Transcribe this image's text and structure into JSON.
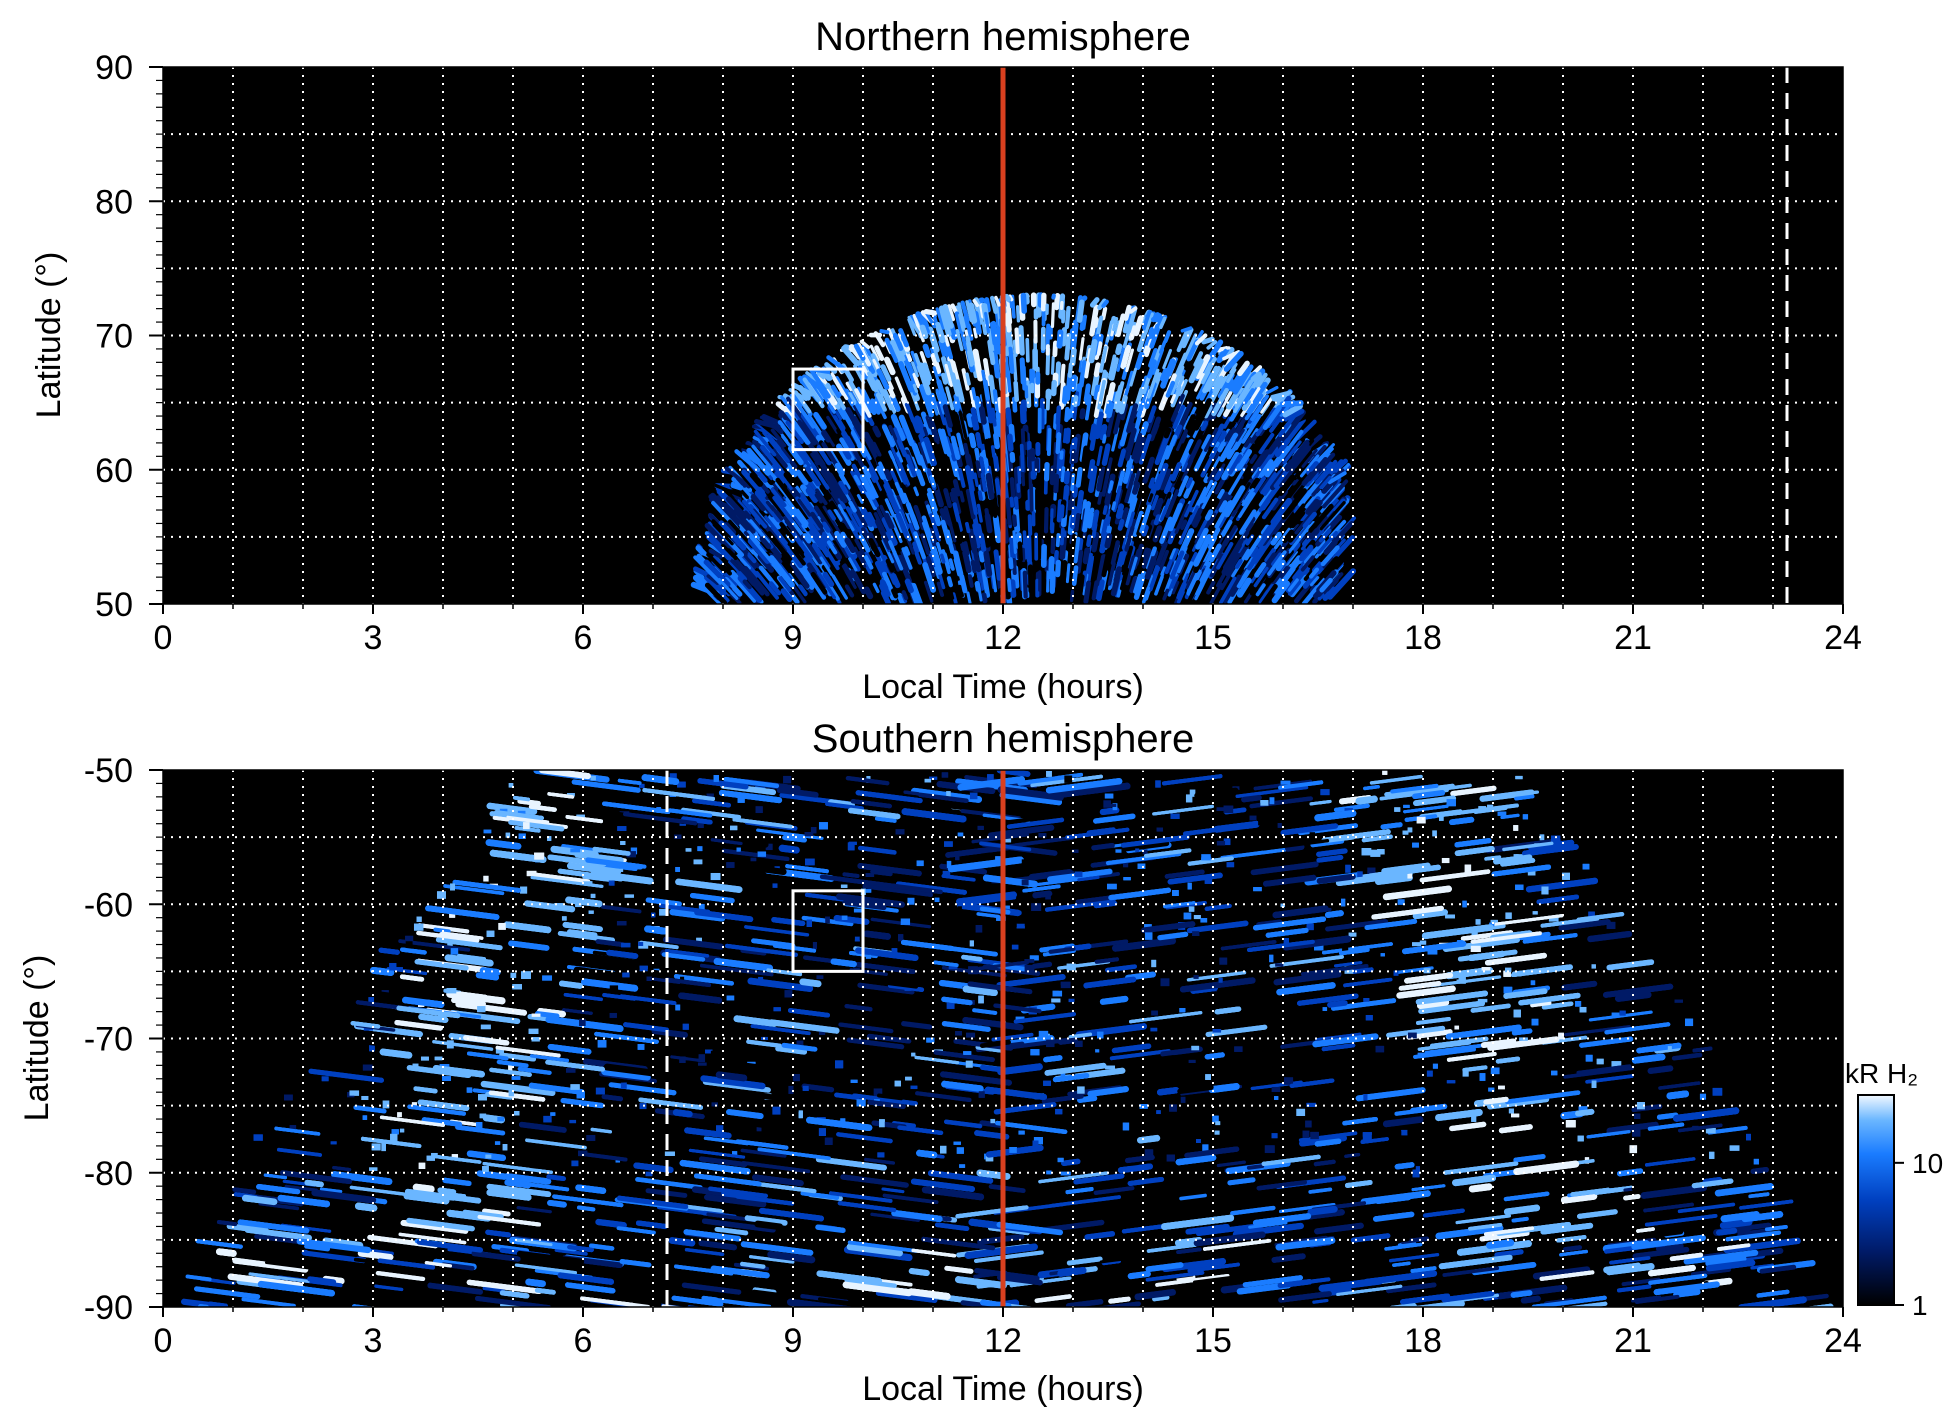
{
  "colors": {
    "background": "#000000",
    "noon_line": "#d9401f",
    "grid": "#ffffff",
    "colormap": [
      "#000000",
      "#001a66",
      "#0040c0",
      "#1a7cff",
      "#6ab6ff",
      "#e8f4ff"
    ]
  },
  "chart_data": [
    {
      "type": "heatmap",
      "title": "Northern hemisphere",
      "xlabel": "Local Time (hours)",
      "ylabel": "Latitude (°)",
      "xlim": [
        0,
        24
      ],
      "ylim": [
        50,
        90
      ],
      "xticks": [
        0,
        3,
        6,
        9,
        12,
        15,
        18,
        21,
        24
      ],
      "yticks": [
        50,
        60,
        70,
        80,
        90
      ],
      "grid": true,
      "reference_lines": [
        {
          "x": 12,
          "style": "solid",
          "color": "#d9401f"
        },
        {
          "x": 23.2,
          "style": "dashed",
          "color": "#ffffff"
        }
      ],
      "highlight_box": {
        "x": [
          9.0,
          10.0
        ],
        "y": [
          61.5,
          67.5
        ]
      },
      "emission_region": {
        "lt_range_at_50deg": [
          7.5,
          16.7
        ],
        "max_latitude": 73,
        "peak_lt": 12.5,
        "bright_band_latitude": [
          64,
          72
        ]
      }
    },
    {
      "type": "heatmap",
      "title": "Southern hemisphere",
      "xlabel": "Local Time (hours)",
      "ylabel": "Latitude (°)",
      "xlim": [
        0,
        24
      ],
      "ylim": [
        -90,
        -50
      ],
      "xticks": [
        0,
        3,
        6,
        9,
        12,
        15,
        18,
        21,
        24
      ],
      "yticks": [
        -90,
        -80,
        -70,
        -60,
        -50
      ],
      "grid": true,
      "reference_lines": [
        {
          "x": 12,
          "style": "solid",
          "color": "#d9401f"
        },
        {
          "x": 7.2,
          "style": "dashed",
          "color": "#ffffff"
        }
      ],
      "highlight_box": {
        "x": [
          9.0,
          10.0
        ],
        "y": [
          -65,
          -59
        ]
      },
      "emission_region": {
        "lt_range_at_-50deg": [
          5.0,
          19.5
        ],
        "lt_range_at_-75deg": [
          0,
          24
        ],
        "bright_arcs_lt": [
          3,
          20
        ]
      },
      "colorbar": {
        "label": "kR H₂",
        "scale": "log",
        "range": [
          1,
          30
        ],
        "ticks": [
          1,
          10
        ]
      }
    }
  ]
}
